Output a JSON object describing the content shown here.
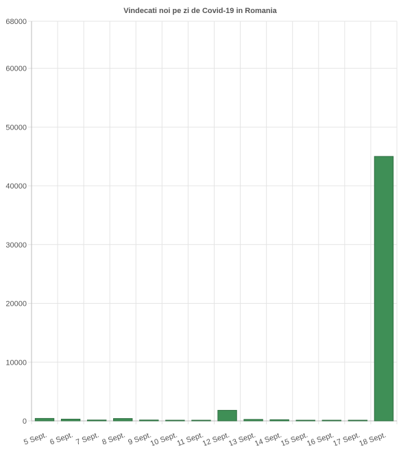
{
  "chart_data": {
    "type": "bar",
    "title": "Vindecati noi pe zi de Covid-19 in Romania",
    "xlabel": "",
    "ylabel": "",
    "categories": [
      "5 Sept.",
      "6 Sept.",
      "7 Sept.",
      "8 Sept.",
      "9 Sept.",
      "10 Sept.",
      "11 Sept.",
      "12 Sept.",
      "13 Sept.",
      "14 Sept.",
      "15 Sept.",
      "16 Sept.",
      "17 Sept.",
      "18 Sept."
    ],
    "values": [
      420,
      300,
      150,
      400,
      150,
      30,
      20,
      1800,
      250,
      200,
      10,
      10,
      10,
      45000
    ],
    "ylim": [
      0,
      68000
    ],
    "yticks": [
      0,
      10000,
      20000,
      30000,
      40000,
      50000,
      60000,
      68000
    ],
    "grid": true,
    "legend": "none",
    "colors": {
      "bar": "#3f8f56",
      "bar_border": "#2f6f42",
      "grid": "#e4e4e4",
      "axis": "#bbbbbb",
      "text": "#555555",
      "title": "#555555"
    }
  }
}
